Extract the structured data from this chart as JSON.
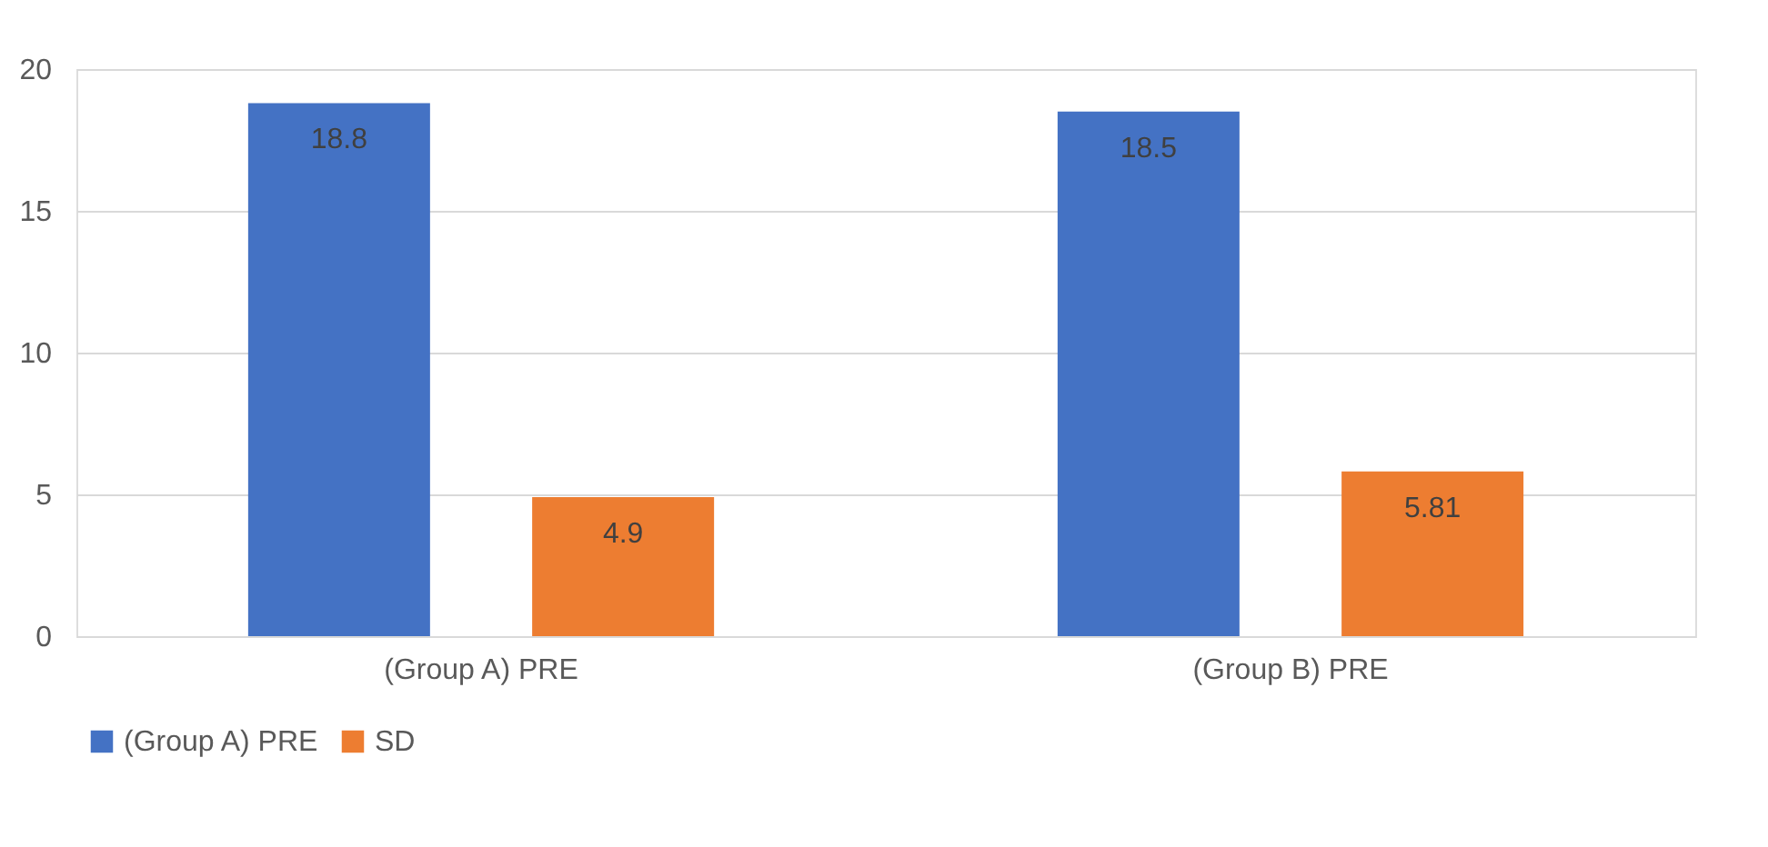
{
  "chart_data": {
    "type": "bar",
    "categories": [
      "(Group A) PRE",
      "(Group B) PRE"
    ],
    "series": [
      {
        "name": "(Group A) PRE",
        "color": "#4472c4",
        "values": [
          18.8,
          18.5
        ]
      },
      {
        "name": "SD",
        "color": "#ed7d31",
        "values": [
          4.9,
          5.81
        ]
      }
    ],
    "ylim": [
      0,
      20
    ],
    "yticks": [
      0,
      5,
      10,
      15,
      20
    ],
    "grid": "y",
    "legend": "bottom",
    "data_labels": true
  }
}
